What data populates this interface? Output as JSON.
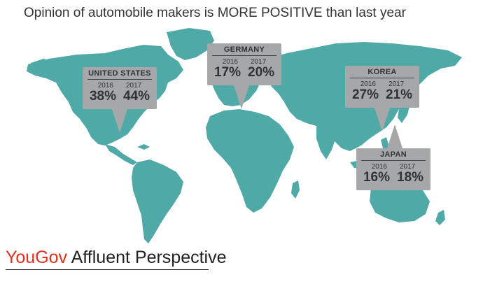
{
  "title": "Opinion of automobile makers is MORE POSITIVE than last year",
  "callouts": [
    {
      "country": "UNITED STATES",
      "year_a": "2016",
      "year_b": "2017",
      "value_a": "38%",
      "value_b": "44%"
    },
    {
      "country": "GERMANY",
      "year_a": "2016",
      "year_b": "2017",
      "value_a": "17%",
      "value_b": "20%"
    },
    {
      "country": "KOREA",
      "year_a": "2016",
      "year_b": "2017",
      "value_a": "27%",
      "value_b": "21%"
    },
    {
      "country": "JAPAN",
      "year_a": "2016",
      "year_b": "2017",
      "value_a": "16%",
      "value_b": "18%"
    }
  ],
  "footer": {
    "brand": "YouGov",
    "tagline": "Affluent Perspective"
  },
  "colors": {
    "land": "#4fa9a7",
    "callout": "#a6a7a9",
    "brand_red": "#e0301e"
  }
}
